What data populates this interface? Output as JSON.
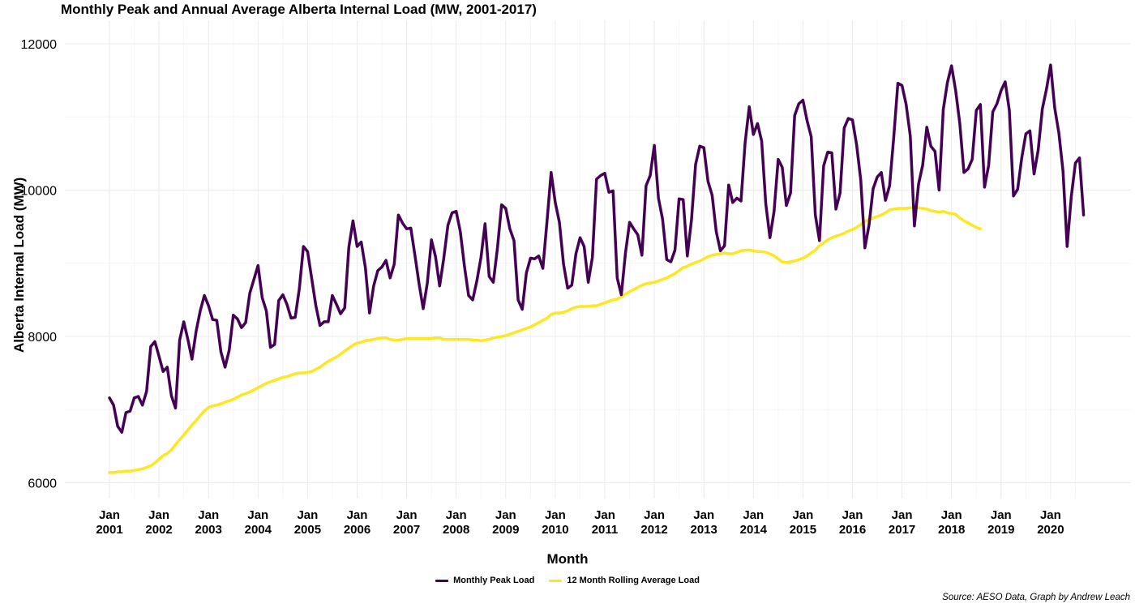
{
  "chart_data": {
    "type": "line",
    "title": "Monthly Peak and Annual Average Alberta Internal Load (MW, 2001-2017)",
    "xlabel": "Month",
    "ylabel": "Alberta Internal Load (MW)",
    "caption": "Source: AESO Data, Graph by Andrew Leach",
    "ylim": [
      5700,
      12400
    ],
    "y_ticks": [
      6000,
      8000,
      10000,
      12000
    ],
    "x_ticks": [
      {
        "year": 2001,
        "label": [
          "Jan",
          "2001"
        ]
      },
      {
        "year": 2002,
        "label": [
          "Jan",
          "2002"
        ]
      },
      {
        "year": 2003,
        "label": [
          "Jan",
          "2003"
        ]
      },
      {
        "year": 2004,
        "label": [
          "Jan",
          "2004"
        ]
      },
      {
        "year": 2005,
        "label": [
          "Jan",
          "2005"
        ]
      },
      {
        "year": 2006,
        "label": [
          "Jan",
          "2006"
        ]
      },
      {
        "year": 2007,
        "label": [
          "Jan",
          "2007"
        ]
      },
      {
        "year": 2008,
        "label": [
          "Jan",
          "2008"
        ]
      },
      {
        "year": 2009,
        "label": [
          "Jan",
          "2009"
        ]
      },
      {
        "year": 2010,
        "label": [
          "Jan",
          "2010"
        ]
      },
      {
        "year": 2011,
        "label": [
          "Jan",
          "2011"
        ]
      },
      {
        "year": 2012,
        "label": [
          "Jan",
          "2012"
        ]
      },
      {
        "year": 2013,
        "label": [
          "Jan",
          "2013"
        ]
      },
      {
        "year": 2014,
        "label": [
          "Jan",
          "2014"
        ]
      },
      {
        "year": 2015,
        "label": [
          "Jan",
          "2015"
        ]
      },
      {
        "year": 2016,
        "label": [
          "Jan",
          "2016"
        ]
      },
      {
        "year": 2017,
        "label": [
          "Jan",
          "2017"
        ]
      },
      {
        "year": 2018,
        "label": [
          "Jan",
          "2018"
        ]
      },
      {
        "year": 2019,
        "label": [
          "Jan",
          "2019"
        ]
      },
      {
        "year": 2020,
        "label": [
          "Jan",
          "2020"
        ]
      }
    ],
    "grid": true,
    "legend_position": "bottom",
    "series": [
      {
        "name": "Monthly Peak Load",
        "color": "#440154",
        "start": "2001-01",
        "values": [
          7160,
          7060,
          6770,
          6690,
          6960,
          6980,
          7160,
          7180,
          7060,
          7250,
          7860,
          7930,
          7730,
          7520,
          7580,
          7190,
          7020,
          7950,
          8200,
          7960,
          7690,
          8070,
          8350,
          8560,
          8420,
          8230,
          8220,
          7790,
          7580,
          7810,
          8290,
          8240,
          8120,
          8190,
          8590,
          8780,
          8970,
          8530,
          8350,
          7850,
          7890,
          8490,
          8570,
          8440,
          8250,
          8260,
          8650,
          9230,
          9160,
          8790,
          8420,
          8150,
          8200,
          8200,
          8560,
          8440,
          8310,
          8390,
          9220,
          9580,
          9230,
          9290,
          8940,
          8320,
          8690,
          8900,
          8950,
          9040,
          8800,
          8990,
          9660,
          9550,
          9470,
          9480,
          9110,
          8720,
          8380,
          8730,
          9320,
          9090,
          8690,
          9070,
          9520,
          9690,
          9710,
          9430,
          8960,
          8560,
          8500,
          8760,
          9080,
          9540,
          8820,
          8740,
          9210,
          9800,
          9750,
          9470,
          9310,
          8500,
          8370,
          8870,
          9070,
          9060,
          9100,
          8930,
          9570,
          10240,
          9830,
          9560,
          8990,
          8660,
          8700,
          9130,
          9350,
          9230,
          8740,
          9080,
          10150,
          10200,
          10230,
          9970,
          9990,
          8800,
          8570,
          9140,
          9560,
          9470,
          9390,
          9110,
          10060,
          10200,
          10610,
          9890,
          9600,
          9050,
          9020,
          9180,
          9880,
          9870,
          9100,
          9590,
          10350,
          10600,
          10580,
          10120,
          9930,
          9430,
          9170,
          9240,
          10070,
          9830,
          9890,
          9850,
          10650,
          11140,
          10760,
          10910,
          10670,
          9810,
          9350,
          9710,
          10420,
          10310,
          9790,
          9960,
          11020,
          11180,
          11230,
          10950,
          10730,
          9660,
          9310,
          10330,
          10520,
          10510,
          9740,
          9960,
          10850,
          10980,
          10960,
          10620,
          10140,
          9210,
          9520,
          10020,
          10180,
          10240,
          9860,
          10060,
          10720,
          11460,
          11430,
          11170,
          10740,
          9510,
          10080,
          10340,
          10860,
          10600,
          10530,
          10000,
          11100,
          11470,
          11700,
          11360,
          10910,
          10240,
          10290,
          10420,
          11090,
          11170,
          10040,
          10340,
          11070,
          11180,
          11360,
          11480,
          11090,
          9920,
          10010,
          10440,
          10770,
          10810,
          10220,
          10550,
          11110,
          11380,
          11710,
          11120,
          10780,
          10260,
          9230,
          9910,
          10370,
          10440,
          9660
        ]
      },
      {
        "name": "12 Month Rolling Average Load",
        "color": "#fde725",
        "start": "2001-01",
        "values": [
          6140,
          6140,
          6150,
          6150,
          6160,
          6160,
          6170,
          6180,
          6190,
          6210,
          6230,
          6270,
          6320,
          6370,
          6400,
          6450,
          6520,
          6590,
          6650,
          6720,
          6790,
          6850,
          6920,
          6980,
          7030,
          7050,
          7060,
          7080,
          7100,
          7120,
          7140,
          7170,
          7200,
          7220,
          7240,
          7270,
          7300,
          7330,
          7360,
          7380,
          7400,
          7420,
          7440,
          7450,
          7470,
          7490,
          7500,
          7500,
          7510,
          7520,
          7550,
          7580,
          7620,
          7660,
          7690,
          7720,
          7760,
          7800,
          7840,
          7880,
          7910,
          7920,
          7940,
          7950,
          7960,
          7970,
          7980,
          7980,
          7960,
          7950,
          7950,
          7960,
          7970,
          7970,
          7970,
          7970,
          7970,
          7970,
          7970,
          7980,
          7980,
          7960,
          7960,
          7960,
          7960,
          7960,
          7960,
          7960,
          7950,
          7950,
          7940,
          7950,
          7960,
          7980,
          7990,
          8000,
          8010,
          8030,
          8050,
          8070,
          8090,
          8110,
          8130,
          8160,
          8190,
          8220,
          8250,
          8300,
          8320,
          8320,
          8330,
          8350,
          8380,
          8400,
          8410,
          8410,
          8410,
          8420,
          8420,
          8440,
          8460,
          8480,
          8500,
          8510,
          8540,
          8580,
          8610,
          8640,
          8670,
          8700,
          8720,
          8730,
          8740,
          8760,
          8780,
          8800,
          8830,
          8860,
          8900,
          8940,
          8960,
          8990,
          9010,
          9030,
          9060,
          9090,
          9110,
          9120,
          9130,
          9140,
          9130,
          9130,
          9150,
          9170,
          9180,
          9180,
          9170,
          9160,
          9160,
          9150,
          9130,
          9100,
          9060,
          9020,
          9010,
          9020,
          9030,
          9050,
          9070,
          9100,
          9140,
          9180,
          9240,
          9280,
          9320,
          9350,
          9370,
          9390,
          9410,
          9440,
          9460,
          9490,
          9530,
          9570,
          9600,
          9620,
          9640,
          9660,
          9690,
          9730,
          9740,
          9750,
          9750,
          9750,
          9760,
          9760,
          9760,
          9750,
          9740,
          9720,
          9710,
          9700,
          9710,
          9690,
          9680,
          9670,
          9620,
          9580,
          9550,
          9520,
          9490,
          9470
        ]
      }
    ]
  }
}
